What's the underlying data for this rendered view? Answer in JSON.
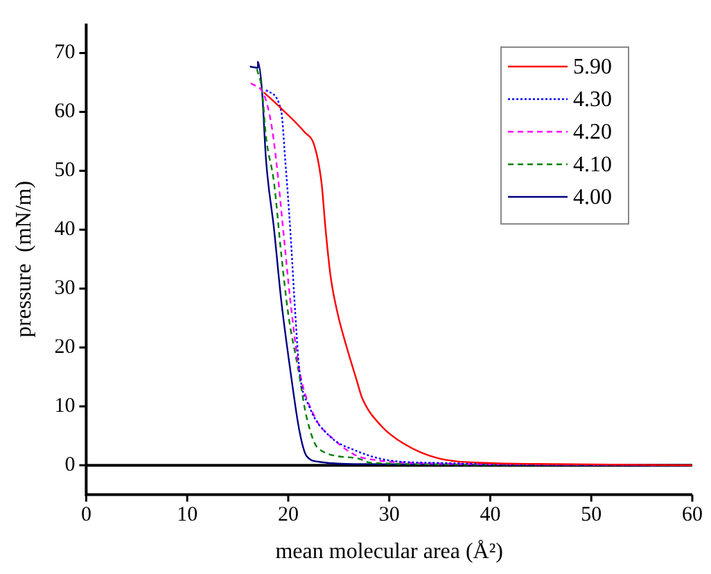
{
  "chart_data": {
    "type": "line",
    "xlabel": "mean molecular area (Å²)",
    "ylabel": "pressure  (mN/m)",
    "xlim": [
      0,
      60
    ],
    "xticks": [
      0,
      10,
      20,
      30,
      40,
      50,
      60
    ],
    "ylim": [
      -5,
      75
    ],
    "yticks": [
      0,
      10,
      20,
      30,
      40,
      50,
      60,
      70
    ],
    "grid": false,
    "legend": "top right",
    "marker": "none",
    "ref_lines": [
      {
        "axis": "y",
        "value": 0,
        "color": "#000000"
      }
    ],
    "series": [
      {
        "name": "5.90",
        "color": "#ff0000",
        "line_style": "solid",
        "x": [
          17.6,
          19.3,
          21.6,
          22.6,
          23.3,
          23.7,
          24.2,
          24.9,
          25.9,
          26.8,
          27.3,
          29.2,
          31.5,
          34.8,
          39.6,
          46.6,
          60
        ],
        "values": [
          63.3,
          60.6,
          56.6,
          54.2,
          47.9,
          40,
          32,
          25.7,
          19.4,
          14.3,
          11.5,
          6.7,
          3.6,
          1.2,
          0.4,
          0.2,
          0
        ]
      },
      {
        "name": "4.30",
        "color": "#0000ff",
        "line_style": "dotted",
        "x": [
          17.8,
          19.3,
          19.7,
          20.2,
          20.7,
          21.1,
          22.1,
          24,
          26.8,
          30.1,
          34.8,
          45,
          60
        ],
        "values": [
          63.7,
          60.2,
          51.9,
          40,
          25.7,
          16.2,
          9.9,
          5.1,
          2.4,
          0.8,
          0.4,
          0.1,
          0
        ]
      },
      {
        "name": "4.20",
        "color": "#ff00ff",
        "line_style": "dashed",
        "x": [
          16.3,
          17.6,
          18.3,
          18.8,
          19.5,
          20.2,
          21.1,
          22.6,
          24.5,
          26.8,
          28.2,
          30.1,
          34.8,
          45,
          60
        ],
        "values": [
          64.9,
          62.9,
          58.2,
          51.9,
          40,
          28.1,
          16.2,
          8.3,
          4.4,
          1.6,
          1.0,
          0.6,
          0.3,
          0.1,
          0
        ]
      },
      {
        "name": "4.10",
        "color": "#008000",
        "line_style": "dashed",
        "x": [
          16.9,
          17.4,
          17.8,
          18.6,
          19.3,
          20,
          21,
          21.8,
          23,
          26.8,
          28.2,
          40,
          60
        ],
        "values": [
          67.3,
          63.7,
          55.8,
          47.9,
          36,
          25.7,
          16.2,
          8.3,
          2.8,
          1.2,
          0.4,
          0.1,
          0
        ]
      },
      {
        "name": "4.00",
        "color": "#000080",
        "line_style": "solid",
        "x": [
          16.2,
          17,
          17,
          17.4,
          17.8,
          18.6,
          19.3,
          20.2,
          21.1,
          21.8,
          23,
          26.8,
          60
        ],
        "values": [
          67.7,
          67.5,
          68.5,
          63.7,
          51.9,
          40,
          28.1,
          16.2,
          5.9,
          1.6,
          0.6,
          0.2,
          0
        ]
      }
    ]
  }
}
